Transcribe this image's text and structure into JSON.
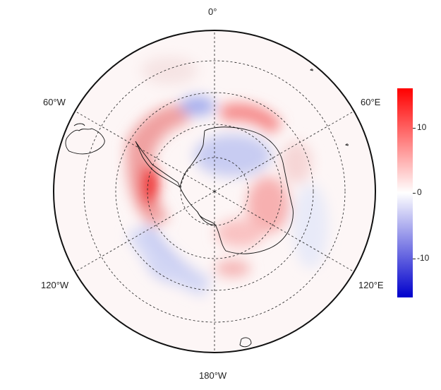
{
  "map": {
    "projection": "south-polar-stereographic",
    "graticule": {
      "meridians": [
        "0°",
        "60°E",
        "120°E",
        "180°W",
        "120°W",
        "60°W"
      ],
      "style": "dashed"
    },
    "field": {
      "description_source": "colored anomaly field",
      "regions": [
        {
          "name": "amundsen-bellingshausen-positive",
          "sign": "positive",
          "magnitude": 14
        },
        {
          "name": "weddell-east-positive",
          "sign": "positive",
          "magnitude": 9
        },
        {
          "name": "ross-pacific-negative",
          "sign": "negative",
          "magnitude": -8
        },
        {
          "name": "east-antarctic-interior-negative",
          "sign": "negative",
          "magnitude": -5
        },
        {
          "name": "east-antarctic-coast-positive",
          "sign": "positive",
          "magnitude": 7
        },
        {
          "name": "indian-ocean-negative",
          "sign": "negative",
          "magnitude": -3
        }
      ]
    }
  },
  "colorbar": {
    "min": -16,
    "max": 16,
    "ticks": [
      {
        "value": 10,
        "label": "10"
      },
      {
        "value": 0,
        "label": "0"
      },
      {
        "value": -10,
        "label": "-10"
      }
    ],
    "colors": {
      "low": "#0000cc",
      "mid": "#ffffff",
      "high": "#ff0000"
    }
  }
}
